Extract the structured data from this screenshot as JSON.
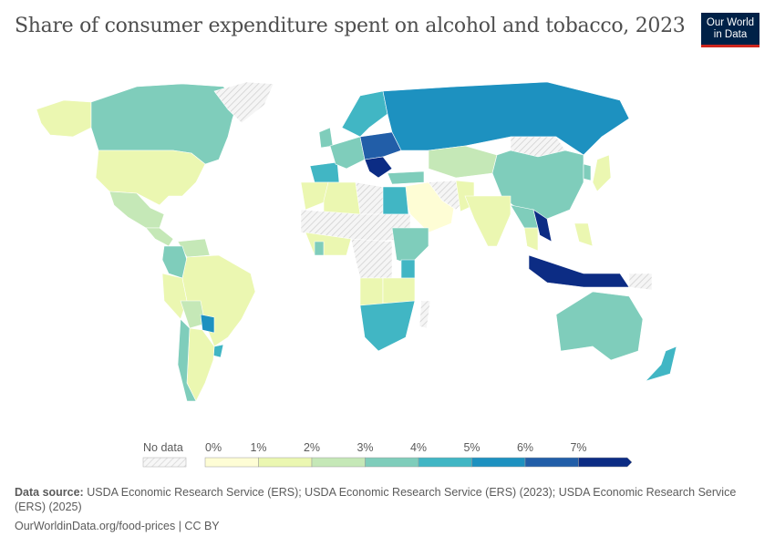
{
  "title": "Share of consumer expenditure spent on alcohol and tobacco, 2023",
  "logo": {
    "line1": "Our World",
    "line2": "in Data"
  },
  "chart_data": {
    "type": "choropleth-map",
    "title": "Share of consumer expenditure spent on alcohol and tobacco, 2023",
    "legend": {
      "no_data_label": "No data",
      "ticks": [
        "0%",
        "1%",
        "2%",
        "3%",
        "4%",
        "5%",
        "6%",
        "7%"
      ],
      "bins": [
        {
          "range": "0-1%",
          "color": "#fefdd5"
        },
        {
          "range": "1-2%",
          "color": "#ebf7b1"
        },
        {
          "range": "2-3%",
          "color": "#c5e8b7"
        },
        {
          "range": "3-4%",
          "color": "#7fcdbb"
        },
        {
          "range": "4-5%",
          "color": "#41b6c4"
        },
        {
          "range": "5-6%",
          "color": "#1d91c0"
        },
        {
          "range": "6-7%",
          "color": "#225ea8"
        },
        {
          "range": ">7%",
          "color": "#0c2c84"
        }
      ],
      "no_data_color": "#e6e6e6"
    },
    "region_bins": {
      "canada": 3,
      "usa": 1,
      "mexico": 2,
      "greenland": -1,
      "alaska": 1,
      "central_america": 2,
      "colombia": 3,
      "venezuela": 2,
      "brazil": 1,
      "peru": 1,
      "bolivia": 2,
      "paraguay": 5,
      "argentina": 1,
      "chile": 3,
      "uruguay": 4,
      "scandinavia": 4,
      "western_europe": 3,
      "central_europe": 6,
      "balkans": 7,
      "iberia": 4,
      "uk": 3,
      "russia": 5,
      "kazakhstan": 2,
      "china": 3,
      "mongolia": -1,
      "japan": 1,
      "korea": 3,
      "middle_east": 0,
      "turkey": 3,
      "iran": -1,
      "egypt": 4,
      "north_africa_west": 1,
      "algeria": 1,
      "libya": -1,
      "sahel": -1,
      "west_africa": 1,
      "ghana": 3,
      "central_africa": -1,
      "east_africa": 3,
      "kenya": 4,
      "angola": 1,
      "tanzania": 1,
      "southern_africa": 4,
      "madagascar": -1,
      "india": 1,
      "pakistan": 1,
      "southeast_asia": 3,
      "laos_vietnam": 7,
      "thailand": 1,
      "philippines": 1,
      "indonesia": 7,
      "papua": -1,
      "australia": 3,
      "new_zealand": 4
    }
  },
  "footer": {
    "source_label": "Data source:",
    "source_text": "USDA Economic Research Service (ERS); USDA Economic Research Service (ERS) (2023); USDA Economic Research Service (ERS) (2025)",
    "url": "OurWorldinData.org/food-prices | CC BY"
  }
}
